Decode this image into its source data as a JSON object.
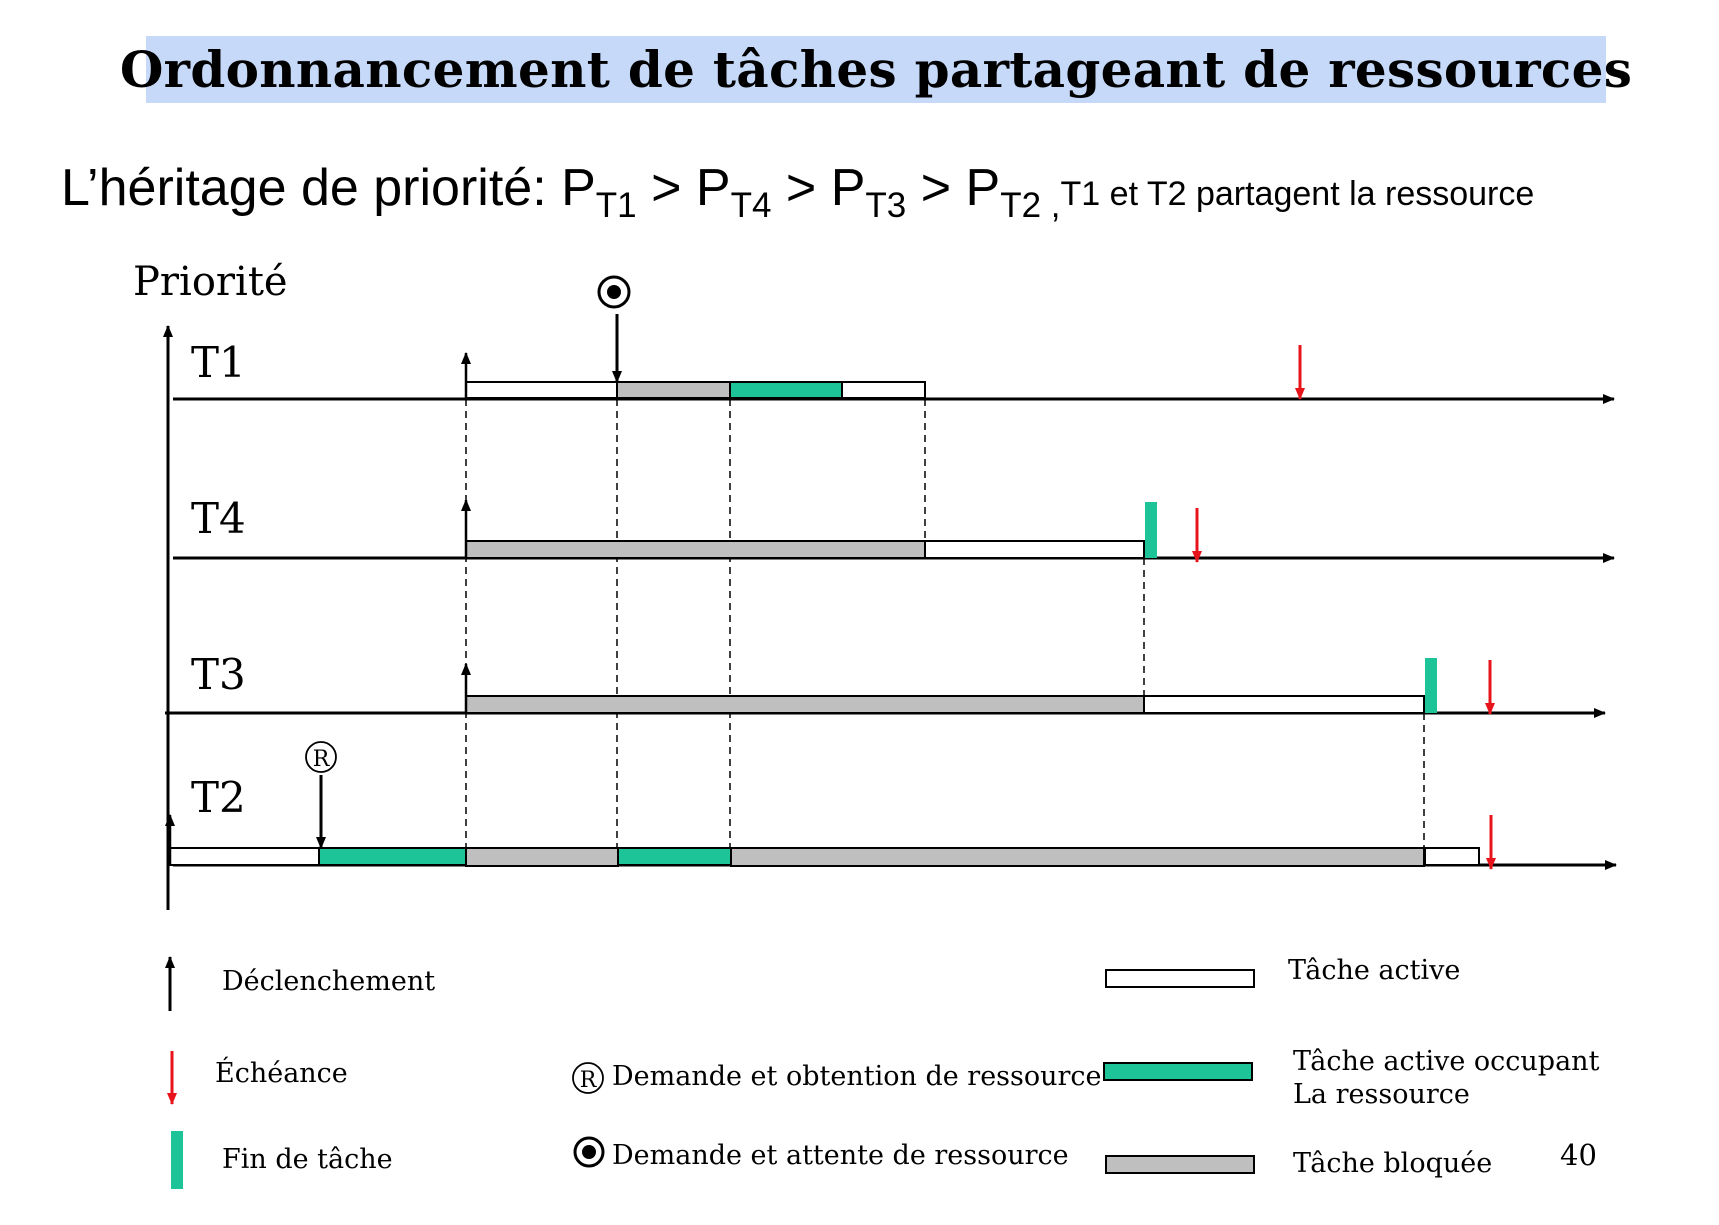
{
  "title": "Ordonnancement de tâches partageant de ressources",
  "subtitle": {
    "lead": "L’héritage de priorité: ",
    "terms": [
      {
        "base": "P",
        "sub": "T1"
      },
      {
        "base": "P",
        "sub": "T4"
      },
      {
        "base": "P",
        "sub": "T3"
      },
      {
        "base": "P",
        "sub": "T2"
      }
    ],
    "operator": " > ",
    "comma": " ,",
    "note": "T1 et T2 partagent la ressource"
  },
  "axis_label": "Priorité",
  "tasks": [
    {
      "label": "T1"
    },
    {
      "label": "T4"
    },
    {
      "label": "T3"
    },
    {
      "label": "T2"
    }
  ],
  "legend": {
    "trigger": "Déclenchement",
    "deadline": "Échéance",
    "end": "Fin de tâche",
    "request_obtain": "Demande et obtention de ressource",
    "request_wait": "Demande et attente de ressource",
    "active": "Tâche active",
    "active_resource_line1": "Tâche active occupant",
    "active_resource_line2": "La ressource",
    "blocked": "Tâche bloquée",
    "resource_symbol": "R"
  },
  "page_number": "40",
  "colors": {
    "title_bg": "#c6d9f8",
    "resource": "#1dc498",
    "blocked": "#bfbfbf",
    "active": "#ffffff",
    "deadline": "#e8141c",
    "end_marker": "#1dc498"
  }
}
